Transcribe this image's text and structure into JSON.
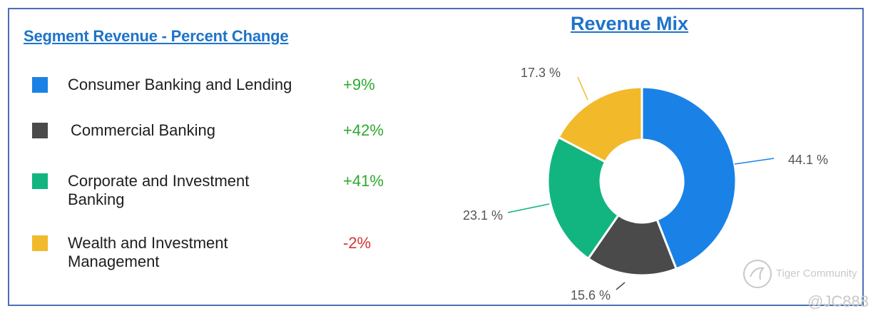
{
  "left": {
    "title": "Segment Revenue - Percent Change",
    "segments": [
      {
        "name": "Consumer Banking and Lending",
        "change": "+9%",
        "color": "#1a82e6",
        "change_color": "#2ea82e"
      },
      {
        "name": "Commercial Banking",
        "change": "+42%",
        "color": "#4a4a4a",
        "change_color": "#2ea82e"
      },
      {
        "name": "Corporate and Investment Banking",
        "change": "+41%",
        "color": "#12b57f",
        "change_color": "#2ea82e"
      },
      {
        "name": "Wealth and Investment Management",
        "change": "-2%",
        "color": "#f2b92b",
        "change_color": "#d93232"
      }
    ]
  },
  "chart_data": {
    "type": "pie",
    "title": "Revenue Mix",
    "donut": true,
    "slices": [
      {
        "label": "44.1 %",
        "value": 44.1,
        "color": "#1a82e6"
      },
      {
        "label": "15.6 %",
        "value": 15.6,
        "color": "#4a4a4a"
      },
      {
        "label": "23.1 %",
        "value": 23.1,
        "color": "#12b57f"
      },
      {
        "label": "17.3 %",
        "value": 17.3,
        "color": "#f2b92b"
      }
    ]
  },
  "watermark": {
    "brand": "Tiger Community",
    "handle": "@JC888"
  }
}
